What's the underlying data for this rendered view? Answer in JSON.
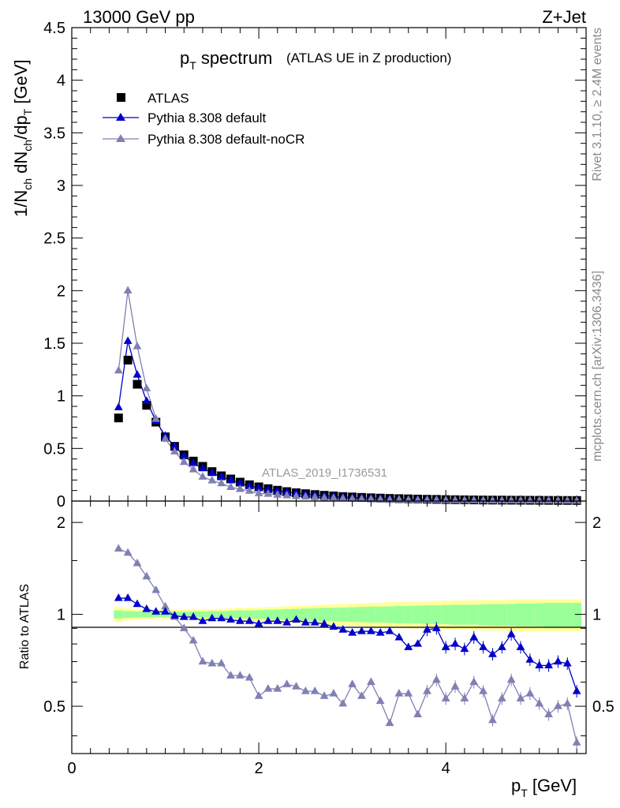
{
  "header": {
    "energy": "13000 GeV pp",
    "process": "Z+Jet"
  },
  "title": {
    "main": "p",
    "main_sub": "T",
    "main_rest": "spectrum",
    "detail": "(ATLAS UE in Z production)"
  },
  "side_labels": {
    "rivet": "Rivet 3.1.10, ≥ 2.4M events",
    "mcplots": "mcplots.cern.ch [arXiv:1306.3436]"
  },
  "analysis_label": "ATLAS_2019_I1736531",
  "axes": {
    "top_ylabel": {
      "a": "1/N",
      "a_sub": "ch",
      "b": " dN",
      "b_sub": "ch",
      "c": "/dp",
      "c_sub": "T",
      "d": " [GeV]"
    },
    "bottom_ylabel": "Ratio to ATLAS",
    "xlabel": {
      "a": "p",
      "a_sub": "T",
      "b": " [GeV]"
    }
  },
  "legend": {
    "entries": [
      {
        "label": "ATLAS",
        "marker": "square",
        "color": "#000000"
      },
      {
        "label": "Pythia 8.308 default",
        "marker": "triangle",
        "color": "#0000cc"
      },
      {
        "label": "Pythia 8.308 default-noCR",
        "marker": "triangle",
        "color": "#8080b3"
      }
    ]
  },
  "chart_data": [
    {
      "type": "scatter",
      "panel": "main",
      "xlim": [
        0,
        5.5
      ],
      "ylim": [
        0,
        4.5
      ],
      "yticks": [
        0,
        0.5,
        1,
        1.5,
        2,
        2.5,
        3,
        3.5,
        4,
        4.5
      ],
      "ytick_labels": [
        "0",
        "0.5",
        "1",
        "1.5",
        "2",
        "2.5",
        "3",
        "3.5",
        "4",
        "4.5"
      ],
      "x": [
        0.5,
        0.6,
        0.7,
        0.8,
        0.9,
        1.0,
        1.1,
        1.2,
        1.3,
        1.4,
        1.5,
        1.6,
        1.7,
        1.8,
        1.9,
        2.0,
        2.1,
        2.2,
        2.3,
        2.4,
        2.5,
        2.6,
        2.7,
        2.8,
        2.9,
        3.0,
        3.1,
        3.2,
        3.3,
        3.4,
        3.5,
        3.6,
        3.7,
        3.8,
        3.9,
        4.0,
        4.1,
        4.2,
        4.3,
        4.4,
        4.5,
        4.6,
        4.7,
        4.8,
        4.9,
        5.0,
        5.1,
        5.2,
        5.3,
        5.4
      ],
      "series": [
        {
          "name": "ATLAS",
          "values": [
            0.79,
            1.34,
            1.11,
            0.91,
            0.75,
            0.61,
            0.52,
            0.44,
            0.38,
            0.33,
            0.28,
            0.24,
            0.21,
            0.18,
            0.155,
            0.135,
            0.118,
            0.103,
            0.09,
            0.079,
            0.07,
            0.062,
            0.055,
            0.049,
            0.043,
            0.039,
            0.035,
            0.031,
            0.028,
            0.025,
            0.023,
            0.021,
            0.019,
            0.017,
            0.016,
            0.014,
            0.013,
            0.012,
            0.011,
            0.01,
            0.0095,
            0.009,
            0.0085,
            0.008,
            0.0075,
            0.007,
            0.0065,
            0.006,
            0.0058,
            0.0055
          ]
        },
        {
          "name": "Pythia 8.308 default",
          "values": [
            0.89,
            1.52,
            1.2,
            0.95,
            0.76,
            0.62,
            0.52,
            0.43,
            0.36,
            0.31,
            0.27,
            0.23,
            0.2,
            0.17,
            0.145,
            0.125,
            0.11,
            0.098,
            0.085,
            0.076,
            0.066,
            0.058,
            0.051,
            0.045,
            0.039,
            0.034,
            0.031,
            0.028,
            0.025,
            0.022,
            0.019,
            0.017,
            0.015,
            0.015,
            0.014,
            0.011,
            0.0105,
            0.0095,
            0.0095,
            0.008,
            0.007,
            0.007,
            0.0073,
            0.0062,
            0.0053,
            0.0048,
            0.0045,
            0.0042,
            0.004,
            0.0031
          ]
        },
        {
          "name": "Pythia 8.308 default-noCR",
          "values": [
            1.24,
            2.0,
            1.47,
            1.07,
            0.78,
            0.59,
            0.47,
            0.37,
            0.3,
            0.23,
            0.195,
            0.168,
            0.132,
            0.113,
            0.096,
            0.073,
            0.067,
            0.059,
            0.053,
            0.046,
            0.041,
            0.036,
            0.03,
            0.027,
            0.024,
            0.021,
            0.019,
            0.018,
            0.015,
            0.011,
            0.0127,
            0.0115,
            0.009,
            0.0095,
            0.0098,
            0.0074,
            0.0075,
            0.0064,
            0.0066,
            0.0056,
            0.0043,
            0.0048,
            0.0052,
            0.0042,
            0.0041,
            0.0036,
            0.0034,
            0.0031,
            0.003,
            0.0021
          ]
        }
      ]
    },
    {
      "type": "scatter",
      "panel": "ratio",
      "xlim": [
        0,
        5.5
      ],
      "ylim": [
        0.35,
        2.35
      ],
      "yticks": [
        0.5,
        1,
        2
      ],
      "ytick_labels": [
        "0.5",
        "1",
        "2"
      ],
      "xticks": [
        0,
        2,
        4
      ],
      "xtick_labels": [
        "0",
        "2",
        "4"
      ],
      "reference_line": 1,
      "band_inner_halfwidth": [
        0.03,
        0.025,
        0.022,
        0.02,
        0.02,
        0.02,
        0.02,
        0.02,
        0.022,
        0.022,
        0.025,
        0.025,
        0.027,
        0.03,
        0.03,
        0.032,
        0.035,
        0.037,
        0.04,
        0.042,
        0.045,
        0.047,
        0.05,
        0.05,
        0.052,
        0.055,
        0.057,
        0.06,
        0.06,
        0.062,
        0.065,
        0.065,
        0.067,
        0.07,
        0.07,
        0.072,
        0.075,
        0.075,
        0.075,
        0.078,
        0.08,
        0.08,
        0.082,
        0.085,
        0.085,
        0.087,
        0.09,
        0.09,
        0.09,
        0.09
      ],
      "band_outer_halfwidth": [
        0.055,
        0.045,
        0.04,
        0.037,
        0.035,
        0.035,
        0.035,
        0.035,
        0.037,
        0.038,
        0.04,
        0.042,
        0.045,
        0.048,
        0.05,
        0.052,
        0.055,
        0.058,
        0.062,
        0.065,
        0.068,
        0.072,
        0.075,
        0.078,
        0.08,
        0.083,
        0.086,
        0.09,
        0.092,
        0.095,
        0.097,
        0.1,
        0.1,
        0.103,
        0.105,
        0.108,
        0.11,
        0.11,
        0.112,
        0.113,
        0.115,
        0.115,
        0.118,
        0.12,
        0.12,
        0.12,
        0.12,
        0.12,
        0.12,
        0.12
      ],
      "series": [
        {
          "name": "Pythia 8.308 default",
          "values": [
            1.13,
            1.13,
            1.08,
            1.04,
            1.02,
            1.02,
            0.99,
            0.98,
            0.98,
            0.95,
            0.97,
            0.97,
            0.96,
            0.95,
            0.95,
            0.93,
            0.95,
            0.95,
            0.94,
            0.96,
            0.94,
            0.94,
            0.93,
            0.91,
            0.89,
            0.87,
            0.88,
            0.88,
            0.87,
            0.88,
            0.84,
            0.78,
            0.8,
            0.89,
            0.9,
            0.78,
            0.8,
            0.77,
            0.84,
            0.78,
            0.74,
            0.78,
            0.86,
            0.78,
            0.71,
            0.68,
            0.68,
            0.7,
            0.69,
            0.56
          ]
        },
        {
          "name": "Pythia 8.308 default-noCR",
          "values": [
            1.64,
            1.59,
            1.47,
            1.33,
            1.2,
            1.06,
            0.98,
            0.9,
            0.82,
            0.7,
            0.69,
            0.69,
            0.63,
            0.63,
            0.62,
            0.54,
            0.57,
            0.57,
            0.59,
            0.58,
            0.56,
            0.56,
            0.54,
            0.55,
            0.51,
            0.59,
            0.54,
            0.6,
            0.52,
            0.44,
            0.55,
            0.55,
            0.47,
            0.56,
            0.61,
            0.53,
            0.58,
            0.53,
            0.6,
            0.56,
            0.45,
            0.53,
            0.61,
            0.53,
            0.55,
            0.51,
            0.47,
            0.5,
            0.51,
            0.38
          ]
        }
      ]
    }
  ]
}
